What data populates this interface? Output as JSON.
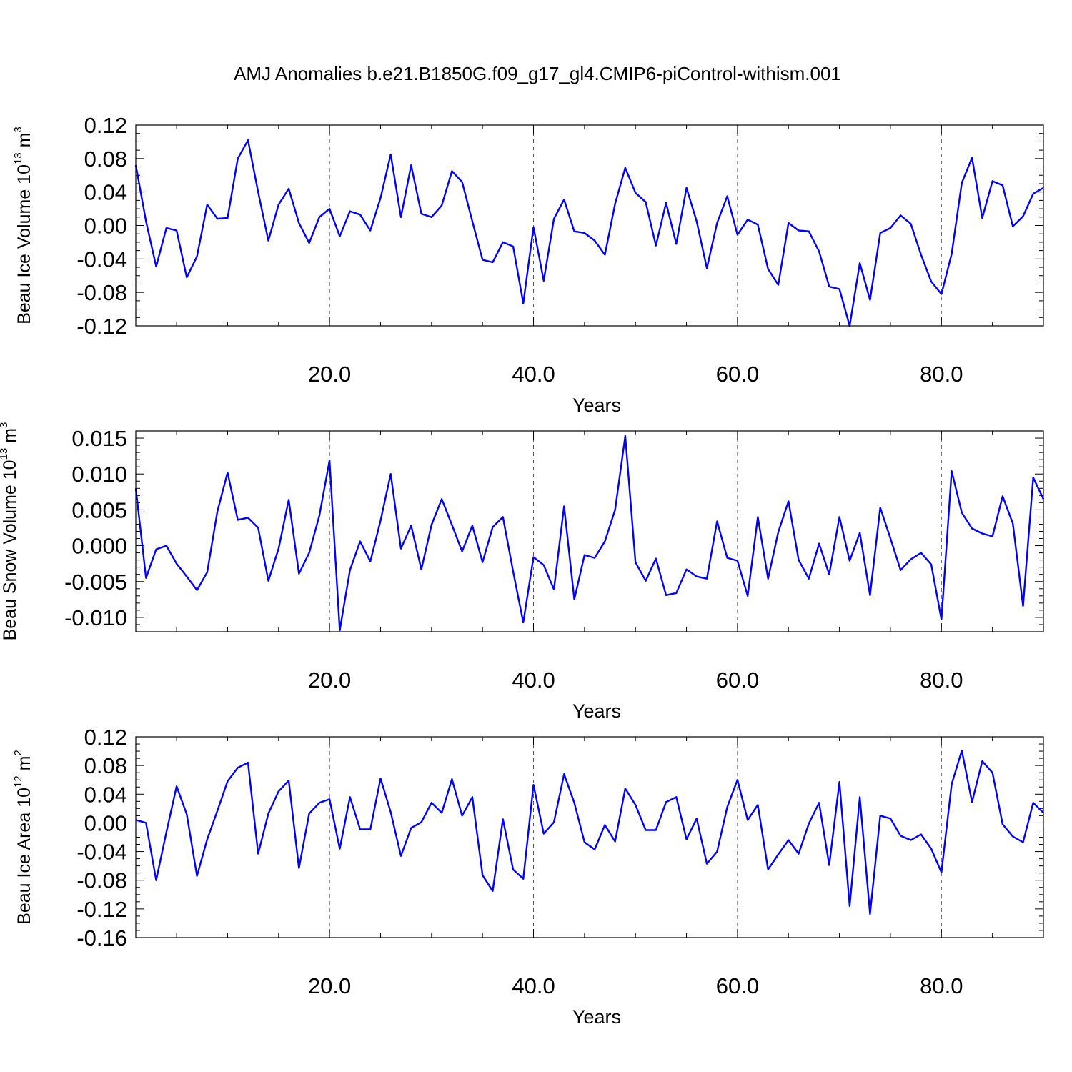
{
  "title": "AMJ Anomalies b.e21.B1850G.f09_g17_gl4.CMIP6-piControl-withism.001",
  "chart_data": [
    {
      "type": "line",
      "ylabel_base": "Beau Ice Volume 10",
      "ylabel_exp": "13",
      "ylabel_unit": " m",
      "ylabel_unit_exp": "3",
      "xlabel": "Years",
      "xlim": [
        1,
        90
      ],
      "ylim": [
        -0.12,
        0.12
      ],
      "y_ticks": [
        -0.12,
        -0.08,
        -0.04,
        0.0,
        0.04,
        0.08,
        0.12
      ],
      "y_tick_labels": [
        "-0.12",
        "-0.08",
        "-0.04",
        "0.00",
        "0.04",
        "0.08",
        "0.12"
      ],
      "y_minor_step": 0.01,
      "x_ticks": [
        20,
        40,
        60,
        80
      ],
      "x_tick_labels": [
        "20.0",
        "40.0",
        "60.0",
        "80.0"
      ],
      "x_minor_step": 5,
      "grid_x": true,
      "series_color": "#0000ff",
      "x": [
        1,
        2,
        3,
        4,
        5,
        6,
        7,
        8,
        9,
        10,
        11,
        12,
        13,
        14,
        15,
        16,
        17,
        18,
        19,
        20,
        21,
        22,
        23,
        24,
        25,
        26,
        27,
        28,
        29,
        30,
        31,
        32,
        33,
        34,
        35,
        36,
        37,
        38,
        39,
        40,
        41,
        42,
        43,
        44,
        45,
        46,
        47,
        48,
        49,
        50,
        51,
        52,
        53,
        54,
        55,
        56,
        57,
        58,
        59,
        60,
        61,
        62,
        63,
        64,
        65,
        66,
        67,
        68,
        69,
        70,
        71,
        72,
        73,
        74,
        75,
        76,
        77,
        78,
        79,
        80,
        81,
        82,
        83,
        84,
        85,
        86,
        87,
        88,
        89,
        90
      ],
      "values": [
        0.072,
        0.005,
        -0.049,
        -0.003,
        -0.006,
        -0.062,
        -0.037,
        0.025,
        0.008,
        0.009,
        0.08,
        0.102,
        0.04,
        -0.018,
        0.025,
        0.044,
        0.003,
        -0.021,
        0.01,
        0.02,
        -0.013,
        0.017,
        0.013,
        -0.006,
        0.033,
        0.085,
        0.01,
        0.072,
        0.014,
        0.01,
        0.024,
        0.065,
        0.052,
        0.005,
        -0.041,
        -0.044,
        -0.02,
        -0.025,
        -0.093,
        -0.002,
        -0.066,
        0.008,
        0.031,
        -0.007,
        -0.009,
        -0.018,
        -0.035,
        0.026,
        0.069,
        0.039,
        0.028,
        -0.024,
        0.027,
        -0.022,
        0.045,
        0.005,
        -0.051,
        0.003,
        0.035,
        -0.011,
        0.007,
        0.001,
        -0.052,
        -0.071,
        0.003,
        -0.006,
        -0.007,
        -0.031,
        -0.073,
        -0.076,
        -0.12,
        -0.045,
        -0.089,
        -0.009,
        -0.003,
        0.012,
        0.002,
        -0.035,
        -0.067,
        -0.082,
        -0.034,
        0.051,
        0.081,
        0.009,
        0.053,
        0.048,
        -0.001,
        0.011,
        0.038,
        0.045
      ]
    },
    {
      "type": "line",
      "ylabel_base": "Beau Snow Volume 10",
      "ylabel_exp": "13",
      "ylabel_unit": " m",
      "ylabel_unit_exp": "3",
      "xlabel": "Years",
      "xlim": [
        1,
        90
      ],
      "ylim": [
        -0.012,
        0.016
      ],
      "y_ticks": [
        -0.01,
        -0.005,
        0.0,
        0.005,
        0.01,
        0.015
      ],
      "y_tick_labels": [
        "-0.010",
        "-0.005",
        "0.000",
        "0.005",
        "0.010",
        "0.015"
      ],
      "y_minor_step": 0.001,
      "x_ticks": [
        20,
        40,
        60,
        80
      ],
      "x_tick_labels": [
        "20.0",
        "40.0",
        "60.0",
        "80.0"
      ],
      "x_minor_step": 5,
      "grid_x": true,
      "series_color": "#0000ff",
      "x": [
        1,
        2,
        3,
        4,
        5,
        6,
        7,
        8,
        9,
        10,
        11,
        12,
        13,
        14,
        15,
        16,
        17,
        18,
        19,
        20,
        21,
        22,
        23,
        24,
        25,
        26,
        27,
        28,
        29,
        30,
        31,
        32,
        33,
        34,
        35,
        36,
        37,
        38,
        39,
        40,
        41,
        42,
        43,
        44,
        45,
        46,
        47,
        48,
        49,
        50,
        51,
        52,
        53,
        54,
        55,
        56,
        57,
        58,
        59,
        60,
        61,
        62,
        63,
        64,
        65,
        66,
        67,
        68,
        69,
        70,
        71,
        72,
        73,
        74,
        75,
        76,
        77,
        78,
        79,
        80,
        81,
        82,
        83,
        84,
        85,
        86,
        87,
        88,
        89,
        90
      ],
      "values": [
        0.008,
        -0.0045,
        -0.0005,
        0.0,
        -0.0025,
        -0.0043,
        -0.0062,
        -0.0037,
        0.0048,
        0.0102,
        0.0036,
        0.0039,
        0.0025,
        -0.0049,
        -0.0004,
        0.0064,
        -0.0039,
        -0.001,
        0.0042,
        0.0119,
        -0.0118,
        -0.0034,
        0.0006,
        -0.0022,
        0.0035,
        0.01,
        -0.0004,
        0.0028,
        -0.0033,
        0.0029,
        0.0065,
        0.0029,
        -0.0008,
        0.0028,
        -0.0023,
        0.0026,
        0.004,
        -0.0036,
        -0.0107,
        -0.0016,
        -0.0027,
        -0.0061,
        0.0055,
        -0.0075,
        -0.0013,
        -0.0017,
        0.0006,
        0.005,
        0.0153,
        -0.0023,
        -0.0049,
        -0.0018,
        -0.0069,
        -0.0066,
        -0.0033,
        -0.0043,
        -0.0046,
        0.0034,
        -0.0017,
        -0.0021,
        -0.007,
        0.004,
        -0.0046,
        0.0019,
        0.0062,
        -0.002,
        -0.0046,
        0.0003,
        -0.004,
        0.004,
        -0.0021,
        0.0018,
        -0.0069,
        0.0053,
        0.001,
        -0.0034,
        -0.0019,
        -0.001,
        -0.0026,
        -0.0103,
        0.0104,
        0.0046,
        0.0024,
        0.0017,
        0.0013,
        0.0069,
        0.0031,
        -0.0084,
        0.0095,
        0.0065
      ]
    },
    {
      "type": "line",
      "ylabel_base": "Beau Ice Area 10",
      "ylabel_exp": "12",
      "ylabel_unit": " m",
      "ylabel_unit_exp": "2",
      "xlabel": "Years",
      "xlim": [
        1,
        90
      ],
      "ylim": [
        -0.16,
        0.12
      ],
      "y_ticks": [
        -0.16,
        -0.12,
        -0.08,
        -0.04,
        0.0,
        0.04,
        0.08,
        0.12
      ],
      "y_tick_labels": [
        "-0.16",
        "-0.12",
        "-0.08",
        "-0.04",
        "0.00",
        "0.04",
        "0.08",
        "0.12"
      ],
      "y_minor_step": 0.01,
      "x_ticks": [
        20,
        40,
        60,
        80
      ],
      "x_tick_labels": [
        "20.0",
        "40.0",
        "60.0",
        "80.0"
      ],
      "x_minor_step": 5,
      "grid_x": true,
      "series_color": "#0000ff",
      "x": [
        1,
        2,
        3,
        4,
        5,
        6,
        7,
        8,
        9,
        10,
        11,
        12,
        13,
        14,
        15,
        16,
        17,
        18,
        19,
        20,
        21,
        22,
        23,
        24,
        25,
        26,
        27,
        28,
        29,
        30,
        31,
        32,
        33,
        34,
        35,
        36,
        37,
        38,
        39,
        40,
        41,
        42,
        43,
        44,
        45,
        46,
        47,
        48,
        49,
        50,
        51,
        52,
        53,
        54,
        55,
        56,
        57,
        58,
        59,
        60,
        61,
        62,
        63,
        64,
        65,
        66,
        67,
        68,
        69,
        70,
        71,
        72,
        73,
        74,
        75,
        76,
        77,
        78,
        79,
        80,
        81,
        82,
        83,
        84,
        85,
        86,
        87,
        88,
        89,
        90
      ],
      "values": [
        0.004,
        0.0,
        -0.08,
        -0.013,
        0.051,
        0.012,
        -0.074,
        -0.023,
        0.017,
        0.058,
        0.077,
        0.084,
        -0.043,
        0.013,
        0.044,
        0.059,
        -0.063,
        0.013,
        0.028,
        0.033,
        -0.036,
        0.036,
        -0.009,
        -0.009,
        0.062,
        0.015,
        -0.046,
        -0.007,
        0.001,
        0.028,
        0.014,
        0.061,
        0.01,
        0.036,
        -0.073,
        -0.095,
        0.005,
        -0.065,
        -0.078,
        0.053,
        -0.015,
        0.001,
        0.068,
        0.028,
        -0.027,
        -0.037,
        -0.003,
        -0.026,
        0.048,
        0.025,
        -0.01,
        -0.01,
        0.029,
        0.036,
        -0.023,
        0.006,
        -0.057,
        -0.04,
        0.022,
        0.06,
        0.004,
        0.025,
        -0.065,
        -0.044,
        -0.024,
        -0.043,
        -0.001,
        0.028,
        -0.059,
        0.057,
        -0.116,
        0.036,
        -0.127,
        0.01,
        0.006,
        -0.018,
        -0.024,
        -0.016,
        -0.036,
        -0.069,
        0.054,
        0.101,
        0.029,
        0.086,
        0.07,
        -0.002,
        -0.019,
        -0.027,
        0.028,
        0.014
      ]
    }
  ]
}
